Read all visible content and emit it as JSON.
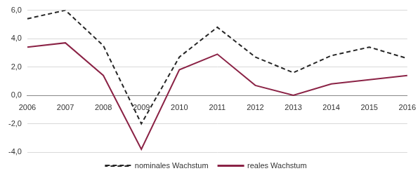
{
  "chart_data": {
    "type": "line",
    "categories": [
      "2006",
      "2007",
      "2008",
      "2009",
      "2010",
      "2011",
      "2012",
      "2013",
      "2014",
      "2015",
      "2016"
    ],
    "series": [
      {
        "name": "nominales Wachstum",
        "color": "#262626",
        "line_style": "dashed",
        "values": [
          5.4,
          6.0,
          3.5,
          -2.0,
          2.7,
          4.8,
          2.7,
          1.6,
          2.8,
          3.4,
          2.6
        ]
      },
      {
        "name": "reales Wachstum",
        "color": "#8b2346",
        "line_style": "solid",
        "values": [
          3.4,
          3.7,
          1.4,
          -3.8,
          1.8,
          2.9,
          0.7,
          0.0,
          0.8,
          1.1,
          1.4
        ]
      }
    ],
    "ylim": [
      -4,
      6
    ],
    "yticks": [
      {
        "value": -4,
        "label": "-4,0"
      },
      {
        "value": -2,
        "label": "-2,0"
      },
      {
        "value": 0,
        "label": "0,0"
      },
      {
        "value": 2,
        "label": "2,0"
      },
      {
        "value": 4,
        "label": "4,0"
      },
      {
        "value": 6,
        "label": "6,0"
      }
    ],
    "grid": true,
    "legend": "bottom"
  }
}
